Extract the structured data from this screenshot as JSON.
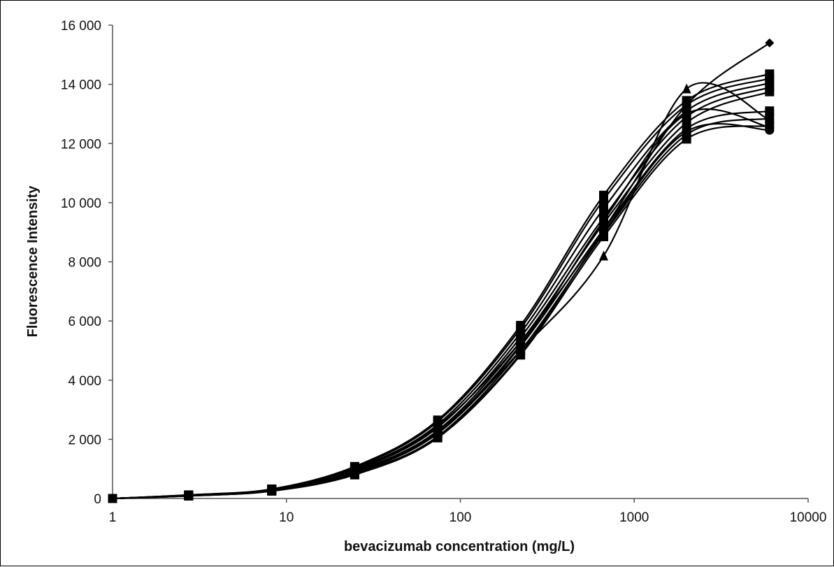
{
  "chart_data": {
    "type": "line",
    "title": "",
    "xlabel": "bevacizumab concentration (mg/L)",
    "ylabel": "Fluorescence Intensity",
    "x_scale": "log",
    "xlim": [
      1,
      10000
    ],
    "ylim": [
      0,
      16000
    ],
    "x_ticks": [
      1,
      10,
      100,
      1000,
      10000
    ],
    "x_tick_labels": [
      "1",
      "10",
      "100",
      "1000",
      "10000"
    ],
    "y_ticks": [
      0,
      2000,
      4000,
      6000,
      8000,
      10000,
      12000,
      14000,
      16000
    ],
    "y_tick_labels": [
      "0",
      "2 000",
      "4 000",
      "6 000",
      "8 000",
      "10 000",
      "12 000",
      "14 000",
      "16 000"
    ],
    "grid": false,
    "legend": "none",
    "line_color": "#000000",
    "x": [
      1,
      2.74,
      8.23,
      24.7,
      74.1,
      222,
      667,
      2000,
      6000
    ],
    "series": [
      {
        "marker": "diamond",
        "values": [
          0,
          110,
          290,
          950,
          2450,
          5300,
          9100,
          13300,
          15400
        ]
      },
      {
        "marker": "triangle",
        "values": [
          0,
          100,
          260,
          860,
          2200,
          5000,
          8200,
          13850,
          12800
        ]
      },
      {
        "marker": "square",
        "values": [
          0,
          120,
          320,
          1080,
          2650,
          5850,
          10250,
          13450,
          14350
        ]
      },
      {
        "marker": "square",
        "values": [
          0,
          115,
          310,
          1040,
          2600,
          5750,
          10100,
          13300,
          14200
        ]
      },
      {
        "marker": "square",
        "values": [
          0,
          110,
          300,
          1000,
          2500,
          5600,
          9800,
          13100,
          14050
        ]
      },
      {
        "marker": "square",
        "values": [
          0,
          105,
          290,
          960,
          2400,
          5450,
          9500,
          12900,
          13900
        ]
      },
      {
        "marker": "square",
        "values": [
          0,
          100,
          280,
          920,
          2300,
          5300,
          9300,
          12700,
          13750
        ]
      },
      {
        "marker": "square",
        "values": [
          0,
          95,
          270,
          880,
          2200,
          5150,
          9100,
          12500,
          13100
        ]
      },
      {
        "marker": "square",
        "values": [
          0,
          90,
          260,
          840,
          2100,
          5000,
          8950,
          12300,
          12850
        ]
      },
      {
        "marker": "square",
        "values": [
          0,
          85,
          250,
          800,
          2050,
          4850,
          8850,
          12150,
          12600
        ]
      },
      {
        "marker": "circle",
        "values": [
          0,
          90,
          255,
          820,
          2080,
          4900,
          9000,
          12400,
          12450
        ]
      },
      {
        "marker": "circle",
        "values": [
          0,
          100,
          275,
          900,
          2250,
          5200,
          9400,
          13000,
          12550
        ]
      }
    ]
  }
}
